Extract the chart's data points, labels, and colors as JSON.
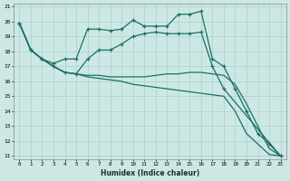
{
  "xlabel": "Humidex (Indice chaleur)",
  "xlim": [
    -0.5,
    23.5
  ],
  "ylim": [
    10.8,
    21.2
  ],
  "xticks": [
    0,
    1,
    2,
    3,
    4,
    5,
    6,
    7,
    8,
    9,
    10,
    11,
    12,
    13,
    14,
    15,
    16,
    17,
    18,
    19,
    20,
    21,
    22,
    23
  ],
  "yticks": [
    11,
    12,
    13,
    14,
    15,
    16,
    17,
    18,
    19,
    20,
    21
  ],
  "bg_color": "#cde8e4",
  "grid_color": "#aad0cb",
  "line_color": "#1a7068",
  "lines": [
    {
      "x": [
        0,
        1,
        2,
        3,
        4,
        5,
        6,
        7,
        8,
        9,
        10,
        11,
        12,
        13,
        14,
        15,
        16,
        17,
        18,
        19,
        20,
        21,
        22,
        23
      ],
      "y": [
        19.9,
        18.1,
        17.5,
        17.2,
        17.5,
        17.5,
        19.5,
        19.5,
        19.4,
        19.5,
        20.1,
        19.7,
        19.7,
        19.7,
        20.5,
        20.5,
        20.7,
        17.5,
        17.0,
        15.5,
        14.0,
        12.5,
        11.8,
        11.0
      ],
      "markers": true,
      "lw": 0.9
    },
    {
      "x": [
        0,
        1,
        2,
        3,
        4,
        5,
        6,
        7,
        8,
        9,
        10,
        11,
        12,
        13,
        14,
        15,
        16,
        17,
        18,
        23
      ],
      "y": [
        19.9,
        18.1,
        17.5,
        17.0,
        16.6,
        16.5,
        17.5,
        18.1,
        18.1,
        18.5,
        19.0,
        19.2,
        19.3,
        19.2,
        19.2,
        19.2,
        19.3,
        17.0,
        15.5,
        11.0
      ],
      "markers": true,
      "lw": 0.9
    },
    {
      "x": [
        0,
        1,
        2,
        3,
        4,
        5,
        6,
        7,
        8,
        9,
        10,
        11,
        12,
        13,
        14,
        15,
        16,
        17,
        18,
        19,
        20,
        21,
        22,
        23
      ],
      "y": [
        19.9,
        18.1,
        17.5,
        17.0,
        16.6,
        16.5,
        16.4,
        16.4,
        16.3,
        16.3,
        16.3,
        16.3,
        16.4,
        16.5,
        16.5,
        16.6,
        16.6,
        16.5,
        16.4,
        15.8,
        14.5,
        13.0,
        11.5,
        11.0
      ],
      "markers": false,
      "lw": 0.9
    },
    {
      "x": [
        0,
        1,
        2,
        3,
        4,
        5,
        6,
        7,
        8,
        9,
        10,
        11,
        12,
        13,
        14,
        15,
        16,
        17,
        18,
        19,
        20,
        21,
        22,
        23
      ],
      "y": [
        19.9,
        18.1,
        17.5,
        17.0,
        16.6,
        16.5,
        16.3,
        16.2,
        16.1,
        16.0,
        15.8,
        15.7,
        15.6,
        15.5,
        15.4,
        15.3,
        15.2,
        15.1,
        15.0,
        14.0,
        12.5,
        11.8,
        11.1,
        11.0
      ],
      "markers": false,
      "lw": 0.9
    }
  ]
}
